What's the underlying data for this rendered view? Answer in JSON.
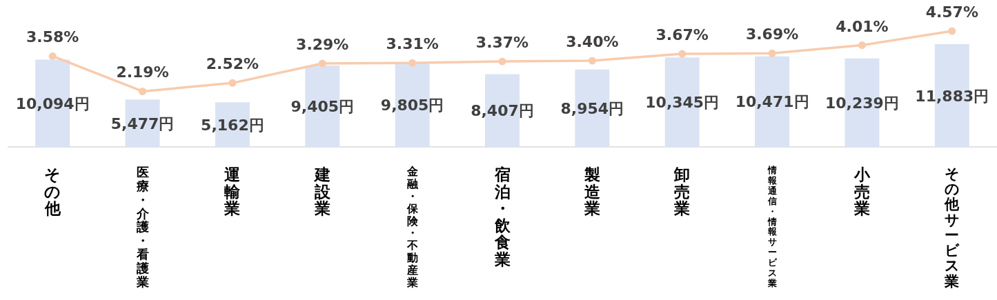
{
  "chart_data": {
    "type": "bar",
    "categories": [
      "その他",
      "医療・介護・看護業",
      "運輸業",
      "建設業",
      "金融・保険・不動産業",
      "宿泊・飲食業",
      "製造業",
      "卸売業",
      "情報通信・情報サービス業",
      "小売業",
      "その他サービス業"
    ],
    "series": [
      {
        "color": "#dae3f3",
        "values": [
          10094,
          5477,
          5162,
          9405,
          9805,
          8407,
          8954,
          10345,
          10471,
          10239,
          11883
        ],
        "value_labels": [
          "10,094円",
          "5,477円",
          "5,162円",
          "9,405円",
          "9,805円",
          "8,407円",
          "8,954円",
          "10,345円",
          "10,471円",
          "10,239円",
          "11,883円"
        ]
      },
      {
        "type": "line",
        "axis": "y2",
        "color": "#f8cbad",
        "marker": "circle",
        "values": [
          3.58,
          2.19,
          2.52,
          3.29,
          3.31,
          3.37,
          3.4,
          3.67,
          3.69,
          4.01,
          4.57
        ],
        "value_labels": [
          "3.58%",
          "2.19%",
          "2.52%",
          "3.29%",
          "3.31%",
          "3.37%",
          "3.40%",
          "3.67%",
          "3.69%",
          "4.01%",
          "4.57%"
        ]
      }
    ],
    "grid": false
  }
}
